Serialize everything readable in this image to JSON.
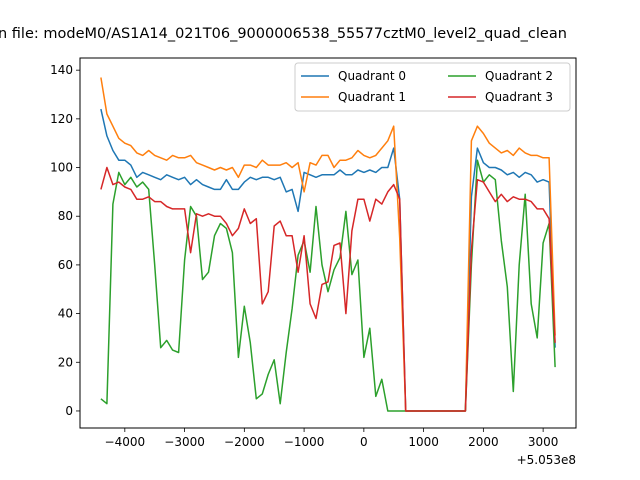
{
  "chart_data": {
    "type": "line",
    "title": "n file: modeM0/AS1A14_021T06_9000006538_55577cztM0_level2_quad_clean",
    "xlabel": "",
    "ylabel": "",
    "x_offset_label": "+5.053e8",
    "xlim": [
      -4750,
      3550
    ],
    "ylim": [
      -7,
      145
    ],
    "xticks": [
      -4000,
      -3000,
      -2000,
      -1000,
      0,
      1000,
      2000,
      3000
    ],
    "xtick_labels": [
      "−4000",
      "−3000",
      "−2000",
      "−1000",
      "0",
      "1000",
      "2000",
      "3000"
    ],
    "yticks": [
      0,
      20,
      40,
      60,
      80,
      100,
      120,
      140
    ],
    "ytick_labels": [
      "0",
      "20",
      "40",
      "60",
      "80",
      "100",
      "120",
      "140"
    ],
    "grid": false,
    "legend_position": "upper-right",
    "legend_columns": 2,
    "series": [
      {
        "name": "Quadrant 0",
        "color": "#1f77b4",
        "points": [
          [
            -4400,
            124
          ],
          [
            -4300,
            113
          ],
          [
            -4200,
            107
          ],
          [
            -4100,
            103
          ],
          [
            -4000,
            103
          ],
          [
            -3900,
            101
          ],
          [
            -3800,
            96
          ],
          [
            -3700,
            98
          ],
          [
            -3600,
            97
          ],
          [
            -3500,
            96
          ],
          [
            -3400,
            95
          ],
          [
            -3300,
            97
          ],
          [
            -3200,
            96
          ],
          [
            -3100,
            95
          ],
          [
            -3000,
            96
          ],
          [
            -2900,
            93
          ],
          [
            -2800,
            95
          ],
          [
            -2700,
            93
          ],
          [
            -2600,
            92
          ],
          [
            -2500,
            91
          ],
          [
            -2400,
            91
          ],
          [
            -2300,
            95
          ],
          [
            -2200,
            91
          ],
          [
            -2100,
            91
          ],
          [
            -2000,
            94
          ],
          [
            -1900,
            96
          ],
          [
            -1800,
            95
          ],
          [
            -1700,
            96
          ],
          [
            -1600,
            96
          ],
          [
            -1500,
            95
          ],
          [
            -1400,
            96
          ],
          [
            -1300,
            90
          ],
          [
            -1200,
            91
          ],
          [
            -1100,
            82
          ],
          [
            -1000,
            98
          ],
          [
            -900,
            97
          ],
          [
            -800,
            96
          ],
          [
            -700,
            97
          ],
          [
            -600,
            97
          ],
          [
            -500,
            97
          ],
          [
            -400,
            99
          ],
          [
            -300,
            97
          ],
          [
            -200,
            97
          ],
          [
            -100,
            99
          ],
          [
            0,
            98
          ],
          [
            100,
            99
          ],
          [
            200,
            98
          ],
          [
            300,
            100
          ],
          [
            400,
            100
          ],
          [
            500,
            108
          ],
          [
            600,
            87
          ],
          [
            700,
            0
          ],
          [
            800,
            0
          ],
          [
            900,
            0
          ],
          [
            1000,
            0
          ],
          [
            1100,
            0
          ],
          [
            1200,
            0
          ],
          [
            1300,
            0
          ],
          [
            1400,
            0
          ],
          [
            1500,
            0
          ],
          [
            1600,
            0
          ],
          [
            1700,
            0
          ],
          [
            1800,
            88
          ],
          [
            1900,
            108
          ],
          [
            2000,
            102
          ],
          [
            2100,
            100
          ],
          [
            2200,
            100
          ],
          [
            2300,
            99
          ],
          [
            2400,
            97
          ],
          [
            2500,
            98
          ],
          [
            2600,
            96
          ],
          [
            2700,
            98
          ],
          [
            2800,
            97
          ],
          [
            2900,
            94
          ],
          [
            3000,
            95
          ],
          [
            3100,
            94
          ],
          [
            3200,
            26
          ]
        ]
      },
      {
        "name": "Quadrant 1",
        "color": "#ff7f0e",
        "points": [
          [
            -4400,
            137
          ],
          [
            -4300,
            122
          ],
          [
            -4200,
            117
          ],
          [
            -4100,
            112
          ],
          [
            -4000,
            110
          ],
          [
            -3900,
            109
          ],
          [
            -3800,
            106
          ],
          [
            -3700,
            105
          ],
          [
            -3600,
            107
          ],
          [
            -3500,
            105
          ],
          [
            -3400,
            104
          ],
          [
            -3300,
            103
          ],
          [
            -3200,
            105
          ],
          [
            -3100,
            104
          ],
          [
            -3000,
            104
          ],
          [
            -2900,
            105
          ],
          [
            -2800,
            102
          ],
          [
            -2700,
            101
          ],
          [
            -2600,
            100
          ],
          [
            -2500,
            99
          ],
          [
            -2400,
            100
          ],
          [
            -2300,
            99
          ],
          [
            -2200,
            100
          ],
          [
            -2100,
            96
          ],
          [
            -2000,
            101
          ],
          [
            -1900,
            101
          ],
          [
            -1800,
            100
          ],
          [
            -1700,
            103
          ],
          [
            -1600,
            101
          ],
          [
            -1500,
            101
          ],
          [
            -1400,
            101
          ],
          [
            -1300,
            102
          ],
          [
            -1200,
            100
          ],
          [
            -1100,
            102
          ],
          [
            -1000,
            90
          ],
          [
            -900,
            102
          ],
          [
            -800,
            101
          ],
          [
            -700,
            105
          ],
          [
            -600,
            105
          ],
          [
            -500,
            100
          ],
          [
            -400,
            103
          ],
          [
            -300,
            103
          ],
          [
            -200,
            104
          ],
          [
            -100,
            107
          ],
          [
            0,
            105
          ],
          [
            100,
            104
          ],
          [
            200,
            105
          ],
          [
            300,
            108
          ],
          [
            400,
            111
          ],
          [
            500,
            117
          ],
          [
            600,
            71
          ],
          [
            700,
            0
          ],
          [
            800,
            0
          ],
          [
            900,
            0
          ],
          [
            1000,
            0
          ],
          [
            1100,
            0
          ],
          [
            1200,
            0
          ],
          [
            1300,
            0
          ],
          [
            1400,
            0
          ],
          [
            1500,
            0
          ],
          [
            1600,
            0
          ],
          [
            1700,
            0
          ],
          [
            1800,
            111
          ],
          [
            1900,
            117
          ],
          [
            2000,
            114
          ],
          [
            2100,
            110
          ],
          [
            2200,
            108
          ],
          [
            2300,
            106
          ],
          [
            2400,
            107
          ],
          [
            2500,
            105
          ],
          [
            2600,
            108
          ],
          [
            2700,
            106
          ],
          [
            2800,
            105
          ],
          [
            2900,
            105
          ],
          [
            3000,
            104
          ],
          [
            3100,
            104
          ],
          [
            3200,
            31
          ]
        ]
      },
      {
        "name": "Quadrant 2",
        "color": "#2ca02c",
        "points": [
          [
            -4400,
            5
          ],
          [
            -4300,
            3
          ],
          [
            -4200,
            85
          ],
          [
            -4100,
            98
          ],
          [
            -4000,
            93
          ],
          [
            -3900,
            96
          ],
          [
            -3800,
            92
          ],
          [
            -3700,
            94
          ],
          [
            -3600,
            91
          ],
          [
            -3500,
            60
          ],
          [
            -3400,
            26
          ],
          [
            -3300,
            29
          ],
          [
            -3200,
            25
          ],
          [
            -3100,
            24
          ],
          [
            -3000,
            62
          ],
          [
            -2900,
            84
          ],
          [
            -2800,
            80
          ],
          [
            -2700,
            54
          ],
          [
            -2600,
            57
          ],
          [
            -2500,
            72
          ],
          [
            -2400,
            77
          ],
          [
            -2300,
            75
          ],
          [
            -2200,
            65
          ],
          [
            -2100,
            22
          ],
          [
            -2000,
            43
          ],
          [
            -1900,
            28
          ],
          [
            -1800,
            5
          ],
          [
            -1700,
            7
          ],
          [
            -1600,
            15
          ],
          [
            -1500,
            21
          ],
          [
            -1400,
            3
          ],
          [
            -1300,
            24
          ],
          [
            -1200,
            42
          ],
          [
            -1100,
            64
          ],
          [
            -1000,
            70
          ],
          [
            -900,
            57
          ],
          [
            -800,
            84
          ],
          [
            -700,
            60
          ],
          [
            -600,
            49
          ],
          [
            -500,
            58
          ],
          [
            -400,
            63
          ],
          [
            -300,
            82
          ],
          [
            -200,
            56
          ],
          [
            -100,
            62
          ],
          [
            0,
            22
          ],
          [
            100,
            34
          ],
          [
            200,
            6
          ],
          [
            300,
            13
          ],
          [
            400,
            0
          ],
          [
            500,
            0
          ],
          [
            600,
            0
          ],
          [
            700,
            0
          ],
          [
            800,
            0
          ],
          [
            900,
            0
          ],
          [
            1000,
            0
          ],
          [
            1100,
            0
          ],
          [
            1200,
            0
          ],
          [
            1300,
            0
          ],
          [
            1400,
            0
          ],
          [
            1500,
            0
          ],
          [
            1600,
            0
          ],
          [
            1700,
            0
          ],
          [
            1800,
            60
          ],
          [
            1900,
            103
          ],
          [
            2000,
            94
          ],
          [
            2100,
            97
          ],
          [
            2200,
            95
          ],
          [
            2300,
            70
          ],
          [
            2400,
            51
          ],
          [
            2500,
            8
          ],
          [
            2600,
            60
          ],
          [
            2700,
            89
          ],
          [
            2800,
            44
          ],
          [
            2900,
            30
          ],
          [
            3000,
            69
          ],
          [
            3100,
            77
          ],
          [
            3200,
            18
          ]
        ]
      },
      {
        "name": "Quadrant 3",
        "color": "#d62728",
        "points": [
          [
            -4400,
            91
          ],
          [
            -4300,
            100
          ],
          [
            -4200,
            93
          ],
          [
            -4100,
            94
          ],
          [
            -4000,
            92
          ],
          [
            -3900,
            91
          ],
          [
            -3800,
            87
          ],
          [
            -3700,
            87
          ],
          [
            -3600,
            88
          ],
          [
            -3500,
            86
          ],
          [
            -3400,
            86
          ],
          [
            -3300,
            84
          ],
          [
            -3200,
            83
          ],
          [
            -3100,
            83
          ],
          [
            -3000,
            83
          ],
          [
            -2900,
            65
          ],
          [
            -2800,
            81
          ],
          [
            -2700,
            80
          ],
          [
            -2600,
            81
          ],
          [
            -2500,
            80
          ],
          [
            -2400,
            80
          ],
          [
            -2300,
            77
          ],
          [
            -2200,
            72
          ],
          [
            -2100,
            75
          ],
          [
            -2000,
            83
          ],
          [
            -1900,
            77
          ],
          [
            -1800,
            79
          ],
          [
            -1700,
            44
          ],
          [
            -1600,
            49
          ],
          [
            -1500,
            76
          ],
          [
            -1400,
            78
          ],
          [
            -1300,
            72
          ],
          [
            -1200,
            72
          ],
          [
            -1100,
            57
          ],
          [
            -1000,
            72
          ],
          [
            -900,
            44
          ],
          [
            -800,
            38
          ],
          [
            -700,
            52
          ],
          [
            -600,
            53
          ],
          [
            -500,
            68
          ],
          [
            -400,
            69
          ],
          [
            -300,
            40
          ],
          [
            -200,
            74
          ],
          [
            -100,
            87
          ],
          [
            0,
            87
          ],
          [
            100,
            78
          ],
          [
            200,
            87
          ],
          [
            300,
            85
          ],
          [
            400,
            90
          ],
          [
            500,
            93
          ],
          [
            600,
            87
          ],
          [
            700,
            0
          ],
          [
            800,
            0
          ],
          [
            900,
            0
          ],
          [
            1000,
            0
          ],
          [
            1100,
            0
          ],
          [
            1200,
            0
          ],
          [
            1300,
            0
          ],
          [
            1400,
            0
          ],
          [
            1500,
            0
          ],
          [
            1600,
            0
          ],
          [
            1700,
            0
          ],
          [
            1800,
            66
          ],
          [
            1900,
            95
          ],
          [
            2000,
            94
          ],
          [
            2100,
            90
          ],
          [
            2200,
            86
          ],
          [
            2300,
            89
          ],
          [
            2400,
            86
          ],
          [
            2500,
            88
          ],
          [
            2600,
            87
          ],
          [
            2700,
            87
          ],
          [
            2800,
            86
          ],
          [
            2900,
            83
          ],
          [
            3000,
            83
          ],
          [
            3100,
            79
          ],
          [
            3200,
            28
          ]
        ]
      }
    ]
  }
}
